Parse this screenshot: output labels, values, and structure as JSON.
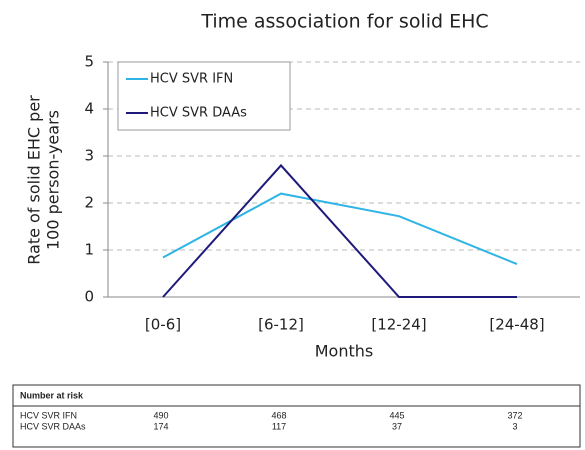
{
  "chart_data": {
    "type": "line",
    "title": "Time association for solid EHC",
    "x_label": "Months",
    "y_label": [
      "Rate of solid EHC per",
      "100 person-years"
    ],
    "categories": [
      "[0-6]",
      "[6-12]",
      "[12-24]",
      "[24-48]"
    ],
    "series": [
      {
        "name": "HCV SVR IFN",
        "color": "#2fb4e6",
        "values": [
          0.84,
          2.2,
          1.72,
          0.7
        ]
      },
      {
        "name": "HCV SVR DAAs",
        "color": "#1f1a7a",
        "values": [
          0,
          2.8,
          0,
          0
        ]
      }
    ],
    "ylim": [
      0,
      5
    ],
    "yticks": [
      0,
      1,
      2,
      3,
      4,
      5
    ],
    "grid": true,
    "legend": "upper left"
  },
  "risk_table": {
    "title": "Number at risk",
    "rows": [
      {
        "name": "HCV SVR IFN",
        "values": [
          490,
          468,
          445,
          372
        ]
      },
      {
        "name": "HCV SVR DAAs",
        "values": [
          174,
          117,
          37,
          3
        ]
      }
    ]
  }
}
